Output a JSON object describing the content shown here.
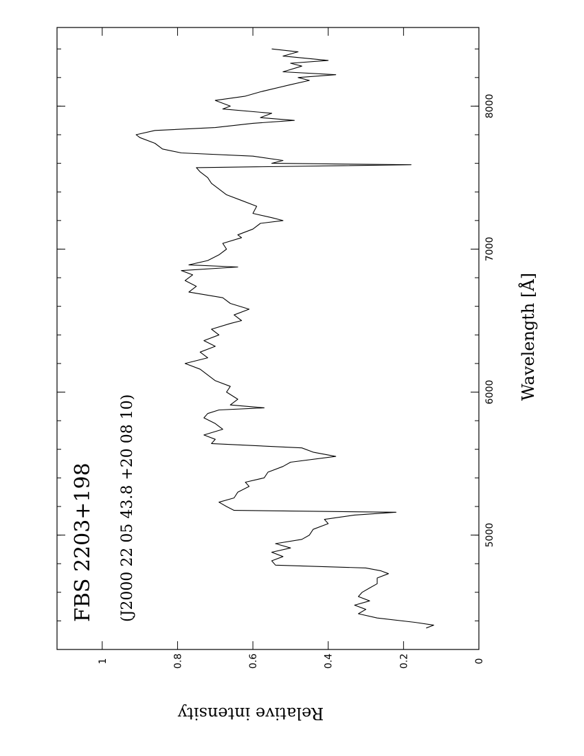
{
  "chart_data": {
    "type": "line",
    "title": "FBS 2203+198",
    "subtitle": "(J2000 22 05 43.8 +20 08 10)",
    "x_label": "Wavelength [Å]",
    "y_label": "Relative intensity",
    "x": [
      4350,
      4370,
      4390,
      4420,
      4450,
      4480,
      4510,
      4540,
      4570,
      4600,
      4630,
      4660,
      4700,
      4730,
      4750,
      4770,
      4790,
      4820,
      4850,
      4880,
      4910,
      4940,
      4970,
      5000,
      5040,
      5080,
      5110,
      5140,
      5160,
      5173,
      5200,
      5230,
      5260,
      5300,
      5340,
      5370,
      5400,
      5440,
      5480,
      5510,
      5550,
      5580,
      5610,
      5640,
      5670,
      5700,
      5740,
      5780,
      5820,
      5850,
      5875,
      5890,
      5910,
      5950,
      6000,
      6040,
      6080,
      6120,
      6160,
      6200,
      6240,
      6280,
      6320,
      6360,
      6400,
      6440,
      6480,
      6500,
      6540,
      6580,
      6620,
      6660,
      6700,
      6740,
      6780,
      6820,
      6850,
      6875,
      6890,
      6920,
      6960,
      7000,
      7040,
      7080,
      7100,
      7140,
      7180,
      7200,
      7220,
      7250,
      7300,
      7340,
      7380,
      7420,
      7460,
      7500,
      7540,
      7570,
      7590,
      7600,
      7620,
      7650,
      7673,
      7700,
      7740,
      7780,
      7800,
      7830,
      7850,
      7880,
      7900,
      7920,
      7950,
      7980,
      8000,
      8040,
      8070,
      8100,
      8150,
      8180,
      8200,
      8220,
      8240,
      8280,
      8300,
      8320,
      8350,
      8380,
      8400
    ],
    "series": [
      {
        "name": "FBS 2203+198",
        "color": "#000000",
        "values": [
          0.14,
          0.12,
          0.17,
          0.27,
          0.32,
          0.3,
          0.33,
          0.29,
          0.32,
          0.31,
          0.29,
          0.27,
          0.27,
          0.24,
          0.26,
          0.3,
          0.54,
          0.55,
          0.52,
          0.55,
          0.5,
          0.54,
          0.47,
          0.45,
          0.44,
          0.4,
          0.41,
          0.33,
          0.22,
          0.65,
          0.67,
          0.69,
          0.65,
          0.64,
          0.61,
          0.62,
          0.57,
          0.56,
          0.52,
          0.5,
          0.38,
          0.44,
          0.47,
          0.71,
          0.7,
          0.73,
          0.68,
          0.7,
          0.73,
          0.72,
          0.69,
          0.57,
          0.66,
          0.64,
          0.67,
          0.66,
          0.7,
          0.72,
          0.74,
          0.78,
          0.72,
          0.74,
          0.7,
          0.73,
          0.69,
          0.71,
          0.66,
          0.63,
          0.65,
          0.61,
          0.66,
          0.68,
          0.77,
          0.75,
          0.78,
          0.76,
          0.79,
          0.64,
          0.77,
          0.72,
          0.69,
          0.67,
          0.68,
          0.63,
          0.64,
          0.6,
          0.58,
          0.52,
          0.55,
          0.6,
          0.59,
          0.63,
          0.67,
          0.69,
          0.71,
          0.72,
          0.74,
          0.75,
          0.18,
          0.55,
          0.52,
          0.6,
          0.79,
          0.84,
          0.86,
          0.9,
          0.91,
          0.86,
          0.7,
          0.6,
          0.49,
          0.58,
          0.55,
          0.68,
          0.66,
          0.7,
          0.62,
          0.58,
          0.5,
          0.45,
          0.48,
          0.38,
          0.52,
          0.47,
          0.5,
          0.4,
          0.52,
          0.48,
          0.55
        ]
      }
    ],
    "xlim": [
      4200,
      8550
    ],
    "xticks": [
      5000,
      6000,
      7000,
      8000
    ],
    "x_minor_step": 200,
    "ylim": [
      0,
      1.12
    ],
    "yticks": [
      0,
      0.2,
      0.4,
      0.6,
      0.8,
      1
    ]
  }
}
